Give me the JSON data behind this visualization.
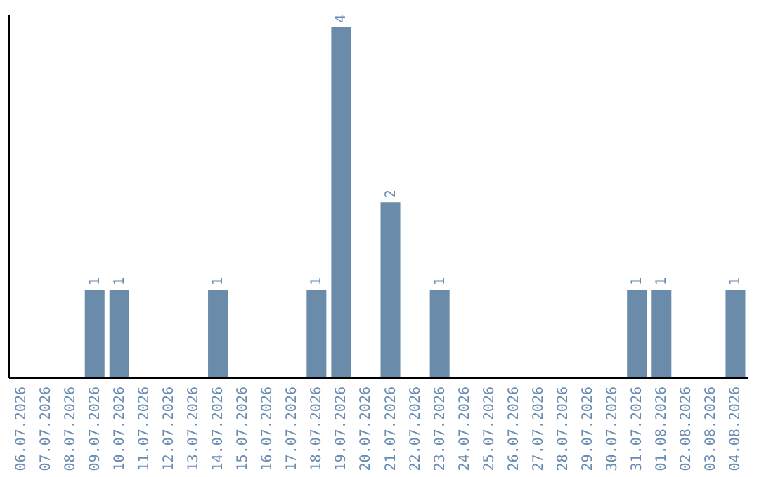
{
  "chart_data": {
    "type": "bar",
    "categories": [
      "06.07.2026",
      "07.07.2026",
      "08.07.2026",
      "09.07.2026",
      "10.07.2026",
      "11.07.2026",
      "12.07.2026",
      "13.07.2026",
      "14.07.2026",
      "15.07.2026",
      "16.07.2026",
      "17.07.2026",
      "18.07.2026",
      "19.07.2026",
      "20.07.2026",
      "21.07.2026",
      "22.07.2026",
      "23.07.2026",
      "24.07.2026",
      "25.07.2026",
      "26.07.2026",
      "27.07.2026",
      "28.07.2026",
      "29.07.2026",
      "30.07.2026",
      "31.07.2026",
      "01.08.2026",
      "02.08.2026",
      "03.08.2026",
      "04.08.2026"
    ],
    "values": [
      0,
      0,
      0,
      1,
      1,
      0,
      0,
      0,
      1,
      0,
      0,
      0,
      1,
      4,
      0,
      2,
      0,
      1,
      0,
      0,
      0,
      0,
      0,
      0,
      0,
      1,
      1,
      0,
      0,
      1
    ],
    "value_labels": [
      null,
      null,
      null,
      "1",
      "1",
      null,
      null,
      null,
      "1",
      null,
      null,
      null,
      "1",
      "4",
      null,
      "2",
      null,
      "1",
      null,
      null,
      null,
      null,
      null,
      null,
      null,
      "1",
      "1",
      null,
      null,
      "1"
    ],
    "color": "#6a8caa",
    "ylim": [
      0,
      4.15
    ],
    "tick_labels": "x",
    "grid": false
  }
}
